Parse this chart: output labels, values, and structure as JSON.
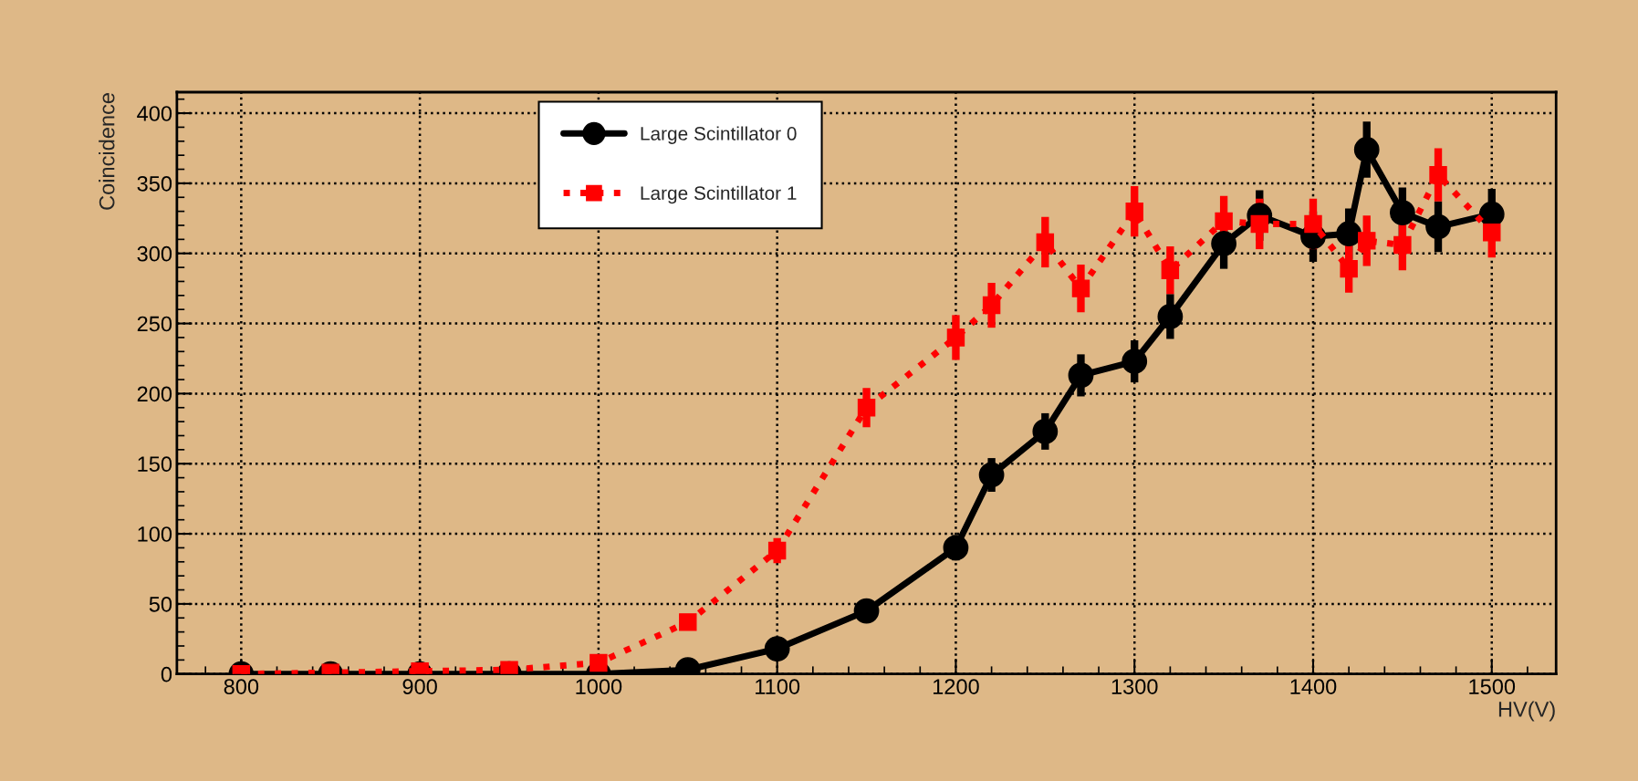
{
  "chart_data": {
    "type": "line",
    "xlabel": "HV(V)",
    "ylabel": "Coincidence",
    "x": [
      800,
      850,
      900,
      950,
      1000,
      1050,
      1100,
      1150,
      1200,
      1220,
      1250,
      1270,
      1300,
      1320,
      1350,
      1370,
      1400,
      1420,
      1430,
      1450,
      1470,
      1500
    ],
    "series": [
      {
        "name": "Large Scintillator 0",
        "color": "#000000",
        "marker": "circle",
        "line_style": "solid",
        "values": [
          0,
          0,
          0,
          0,
          0,
          3,
          18,
          45,
          90,
          142,
          173,
          213,
          223,
          255,
          307,
          327,
          312,
          314,
          374,
          329,
          319,
          328
        ],
        "errors": [
          null,
          null,
          null,
          null,
          null,
          null,
          null,
          null,
          9,
          12,
          13,
          15,
          15,
          16,
          18,
          18,
          18,
          18,
          20,
          18,
          18,
          18
        ]
      },
      {
        "name": "Large Scintillator 1",
        "color": "#ff0000",
        "marker": "square",
        "line_style": "dotted",
        "values": [
          0,
          1,
          2,
          3,
          8,
          37,
          88,
          190,
          240,
          263,
          308,
          275,
          330,
          288,
          323,
          321,
          321,
          289,
          309,
          306,
          356,
          315
        ],
        "errors": [
          null,
          null,
          null,
          null,
          null,
          null,
          9,
          14,
          16,
          16,
          18,
          17,
          18,
          17,
          18,
          18,
          18,
          17,
          18,
          18,
          19,
          18
        ]
      }
    ],
    "xlim": [
      764,
      1536
    ],
    "xticks": [
      800,
      900,
      1000,
      1100,
      1200,
      1300,
      1400,
      1500
    ],
    "ylim": [
      0,
      415
    ],
    "yticks": [
      0,
      50,
      100,
      150,
      200,
      250,
      300,
      350,
      400
    ],
    "grid": true,
    "legend": "top"
  }
}
